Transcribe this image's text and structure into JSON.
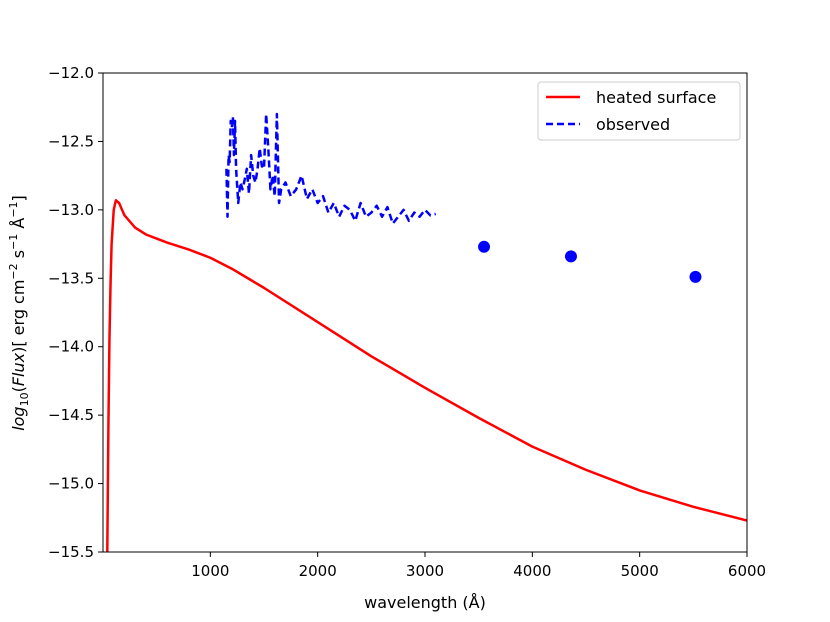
{
  "chart_data": {
    "type": "line",
    "xlabel": "wavelength (Å)",
    "ylabel": {
      "log_prefix": "log",
      "log_sub": "10",
      "flux_open": "(",
      "flux_word": "Flux",
      "flux_close": ")[ erg cm",
      "exp1": "−2",
      "mid": " s",
      "exp2": "−1",
      "tail": " Å",
      "exp3": "−1",
      "end": "]"
    },
    "xlim": [
      0,
      6000
    ],
    "ylim": [
      -15.5,
      -12.0
    ],
    "x_ticks": [
      1000,
      2000,
      3000,
      4000,
      5000,
      6000
    ],
    "x_tick_labels": [
      "1000",
      "2000",
      "3000",
      "4000",
      "5000",
      "6000"
    ],
    "y_ticks": [
      -15.5,
      -15.0,
      -14.5,
      -14.0,
      -13.5,
      -13.0,
      -12.5,
      -12.0
    ],
    "y_tick_labels": [
      "−15.5",
      "−15.0",
      "−14.5",
      "−14.0",
      "−13.5",
      "−13.0",
      "−12.5",
      "−12.0"
    ],
    "grid": false,
    "legend_position": "top-right",
    "series": [
      {
        "name": "heated surface",
        "color": "#ff0000",
        "style": "solid",
        "x": [
          40,
          50,
          60,
          70,
          80,
          100,
          120,
          150,
          200,
          300,
          400,
          600,
          800,
          1000,
          1200,
          1500,
          2000,
          2500,
          3000,
          3500,
          4000,
          4500,
          5000,
          5500,
          6000
        ],
        "y": [
          -15.5,
          -14.6,
          -13.95,
          -13.55,
          -13.25,
          -13.0,
          -12.93,
          -12.95,
          -13.04,
          -13.13,
          -13.18,
          -13.24,
          -13.29,
          -13.35,
          -13.43,
          -13.57,
          -13.82,
          -14.07,
          -14.3,
          -14.52,
          -14.73,
          -14.9,
          -15.05,
          -15.17,
          -15.27
        ]
      },
      {
        "name": "observed",
        "color": "#0000ff",
        "style": "dashed",
        "x": [
          1150,
          1160,
          1170,
          1180,
          1190,
          1200,
          1210,
          1220,
          1230,
          1240,
          1260,
          1280,
          1300,
          1320,
          1340,
          1360,
          1380,
          1400,
          1420,
          1440,
          1460,
          1480,
          1500,
          1520,
          1540,
          1560,
          1580,
          1600,
          1620,
          1640,
          1660,
          1700,
          1750,
          1800,
          1850,
          1900,
          1950,
          2000,
          2050,
          2100,
          2150,
          2200,
          2250,
          2300,
          2350,
          2400,
          2450,
          2500,
          2550,
          2600,
          2650,
          2700,
          2750,
          2800,
          2850,
          2900,
          2950,
          3000,
          3050,
          3100
        ],
        "y": [
          -12.7,
          -13.05,
          -12.6,
          -12.65,
          -12.35,
          -12.4,
          -12.32,
          -12.6,
          -12.35,
          -12.7,
          -12.95,
          -12.8,
          -12.85,
          -12.78,
          -12.7,
          -12.88,
          -12.6,
          -12.75,
          -12.8,
          -12.7,
          -12.55,
          -12.68,
          -12.7,
          -12.3,
          -12.55,
          -12.85,
          -12.75,
          -12.9,
          -12.3,
          -12.95,
          -12.85,
          -12.8,
          -12.9,
          -12.85,
          -12.75,
          -12.92,
          -12.85,
          -12.95,
          -12.9,
          -13.02,
          -12.95,
          -13.05,
          -12.97,
          -13.0,
          -13.08,
          -12.95,
          -13.05,
          -13.02,
          -12.97,
          -13.05,
          -12.98,
          -13.1,
          -13.05,
          -13.0,
          -13.08,
          -13.02,
          -13.05,
          -13.0,
          -13.04,
          -13.03
        ]
      },
      {
        "name": "",
        "color": "#0000ff",
        "style": "markers",
        "x": [
          3550,
          4360,
          5520
        ],
        "y": [
          -13.27,
          -13.34,
          -13.49
        ]
      }
    ]
  }
}
